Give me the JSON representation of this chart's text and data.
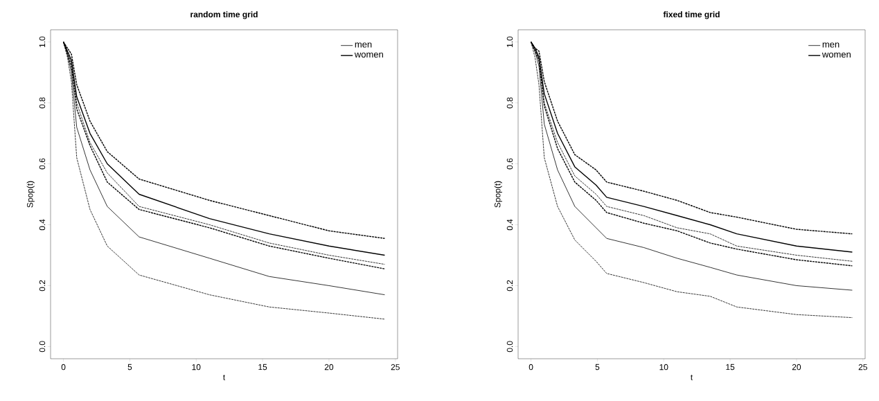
{
  "chart_data": [
    {
      "type": "line",
      "title": "**random time grid**",
      "xlabel": "t",
      "ylabel": "Spop(t)",
      "xlim": [
        -0.97,
        25.17
      ],
      "ylim": [
        -0.04,
        1.04
      ],
      "xticks": [
        0,
        5,
        10,
        15,
        20,
        25
      ],
      "yticks": [
        {
          "value": 0,
          "label": "0.0"
        },
        {
          "value": 0.2,
          "label": "0.2"
        },
        {
          "value": 0.4,
          "label": "0.4"
        },
        {
          "value": 0.6,
          "label": "0.6"
        },
        {
          "value": 0.8,
          "label": "0.8"
        },
        {
          "value": 1,
          "label": "1.0"
        }
      ],
      "grid": false,
      "legend": "top right",
      "marker": "none",
      "x": [
        0,
        0.3,
        0.6,
        1,
        2,
        3.3,
        5.7,
        11,
        15.5,
        20,
        24.2
      ],
      "series": [
        {
          "name": "men",
          "color": "#000000",
          "line_style": "solid",
          "values": [
            1.0,
            0.96,
            0.9,
            0.72,
            0.58,
            0.46,
            0.36,
            0.29,
            0.23,
            0.2,
            0.17
          ]
        },
        {
          "color": "#000000",
          "line_style": "dashed",
          "values": [
            1.0,
            0.97,
            0.93,
            0.8,
            0.67,
            0.57,
            0.46,
            0.4,
            0.34,
            0.3,
            0.27
          ]
        },
        {
          "color": "#000000",
          "line_style": "dashed",
          "values": [
            1.0,
            0.95,
            0.87,
            0.62,
            0.45,
            0.33,
            0.235,
            0.17,
            0.13,
            0.11,
            0.09
          ]
        },
        {
          "name": "women",
          "color": "#000000",
          "line_style": "solid",
          "values": [
            1.0,
            0.97,
            0.94,
            0.82,
            0.7,
            0.6,
            0.5,
            0.42,
            0.37,
            0.33,
            0.3
          ]
        },
        {
          "color": "#000000",
          "line_style": "dashed",
          "values": [
            1.0,
            0.98,
            0.96,
            0.86,
            0.74,
            0.64,
            0.55,
            0.48,
            0.43,
            0.38,
            0.355
          ]
        },
        {
          "color": "#000000",
          "line_style": "dashed",
          "values": [
            1.0,
            0.96,
            0.92,
            0.78,
            0.66,
            0.54,
            0.45,
            0.39,
            0.33,
            0.29,
            0.255
          ]
        }
      ]
    },
    {
      "type": "line",
      "title": "**fixed time grid**",
      "xlabel": "t",
      "ylabel": "Spop(t)",
      "xlim": [
        -0.97,
        25.17
      ],
      "ylim": [
        -0.04,
        1.04
      ],
      "xticks": [
        0,
        5,
        10,
        15,
        20,
        25
      ],
      "yticks": [
        {
          "value": 0,
          "label": "0.0"
        },
        {
          "value": 0.2,
          "label": "0.2"
        },
        {
          "value": 0.4,
          "label": "0.4"
        },
        {
          "value": 0.6,
          "label": "0.6"
        },
        {
          "value": 0.8,
          "label": "0.8"
        },
        {
          "value": 1,
          "label": "1.0"
        }
      ],
      "grid": false,
      "legend": "top right",
      "marker": "none",
      "x": [
        0,
        0.3,
        0.6,
        1,
        2,
        3.3,
        4.9,
        5.7,
        8.5,
        11,
        13.5,
        15.5,
        20,
        24.2
      ],
      "series": [
        {
          "name": "men",
          "color": "#000000",
          "line_style": "solid",
          "values": [
            1,
            0.97,
            0.92,
            0.73,
            0.58,
            0.46,
            0.39,
            0.355,
            0.325,
            0.29,
            0.26,
            0.235,
            0.2,
            0.185
          ]
        },
        {
          "color": "#000000",
          "line_style": "dashed",
          "values": [
            1,
            0.98,
            0.94,
            0.8,
            0.67,
            0.56,
            0.5,
            0.46,
            0.43,
            0.39,
            0.37,
            0.33,
            0.3,
            0.28
          ]
        },
        {
          "color": "#000000",
          "line_style": "dashed",
          "values": [
            1,
            0.95,
            0.86,
            0.62,
            0.46,
            0.35,
            0.28,
            0.24,
            0.21,
            0.18,
            0.165,
            0.13,
            0.105,
            0.095
          ]
        },
        {
          "name": "women",
          "color": "#000000",
          "line_style": "solid",
          "values": [
            1,
            0.98,
            0.95,
            0.83,
            0.7,
            0.59,
            0.53,
            0.49,
            0.46,
            0.43,
            0.4,
            0.37,
            0.33,
            0.31
          ]
        },
        {
          "color": "#000000",
          "line_style": "dashed",
          "values": [
            1,
            0.98,
            0.97,
            0.87,
            0.74,
            0.63,
            0.58,
            0.54,
            0.51,
            0.48,
            0.44,
            0.425,
            0.385,
            0.37
          ]
        },
        {
          "color": "#000000",
          "line_style": "dashed",
          "values": [
            1,
            0.97,
            0.94,
            0.79,
            0.65,
            0.54,
            0.48,
            0.44,
            0.405,
            0.38,
            0.34,
            0.32,
            0.285,
            0.265
          ]
        }
      ]
    }
  ]
}
